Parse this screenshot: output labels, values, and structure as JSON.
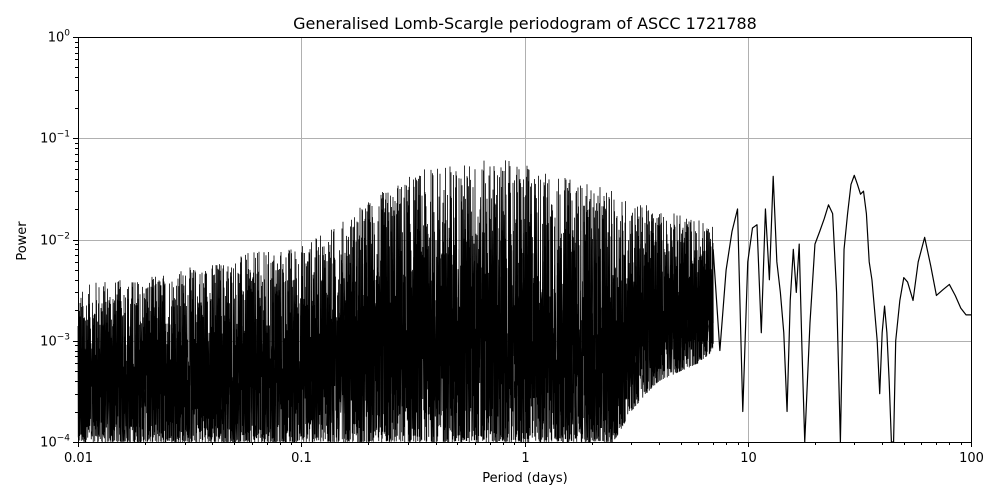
{
  "chart_data": {
    "type": "line",
    "title": "Generalised Lomb-Scargle periodogram of ASCC 1721788",
    "xlabel": "Period (days)",
    "ylabel": "Power",
    "xscale": "log",
    "yscale": "log",
    "xlim": [
      0.01,
      100
    ],
    "ylim": [
      0.0001,
      1
    ],
    "grid": true,
    "line_color": "#000000",
    "x_ticks": [
      {
        "value": 0.01,
        "label": "0.01"
      },
      {
        "value": 0.1,
        "label": "0.1"
      },
      {
        "value": 1,
        "label": "1"
      },
      {
        "value": 10,
        "label": "10"
      },
      {
        "value": 100,
        "label": "100"
      }
    ],
    "y_ticks": [
      {
        "value": 0.0001,
        "base": "10",
        "exp": "−4"
      },
      {
        "value": 0.001,
        "base": "10",
        "exp": "−3"
      },
      {
        "value": 0.01,
        "base": "10",
        "exp": "−2"
      },
      {
        "value": 0.1,
        "base": "10",
        "exp": "−1"
      },
      {
        "value": 1,
        "base": "10",
        "exp": "0"
      }
    ],
    "envelope": {
      "x": [
        0.01,
        0.012,
        0.015,
        0.02,
        0.025,
        0.03,
        0.04,
        0.05,
        0.06,
        0.08,
        0.1,
        0.12,
        0.15,
        0.2,
        0.25,
        0.3,
        0.4,
        0.5,
        0.6,
        0.75,
        0.9,
        1.0,
        1.2,
        1.5,
        2.0,
        2.5,
        3.0,
        3.5,
        4.0,
        5.0,
        6.0,
        7.0
      ],
      "upper": [
        0.003,
        0.004,
        0.004,
        0.0042,
        0.0048,
        0.0052,
        0.006,
        0.0068,
        0.0075,
        0.0082,
        0.009,
        0.011,
        0.015,
        0.025,
        0.033,
        0.042,
        0.055,
        0.058,
        0.06,
        0.062,
        0.06,
        0.055,
        0.05,
        0.042,
        0.035,
        0.03,
        0.025,
        0.022,
        0.02,
        0.018,
        0.016,
        0.015
      ],
      "lower": [
        0.0001,
        0.0001,
        0.0001,
        0.0001,
        0.0001,
        0.0001,
        0.0001,
        0.0001,
        0.0001,
        0.0001,
        0.0001,
        0.0001,
        0.0001,
        0.0001,
        0.0001,
        0.0001,
        0.0001,
        0.0001,
        0.0001,
        0.0001,
        0.0001,
        0.0001,
        0.0001,
        0.0001,
        0.0001,
        0.0001,
        0.0002,
        0.0003,
        0.0004,
        0.0005,
        0.0006,
        0.0008
      ]
    },
    "series": [
      {
        "x": [
          7.0,
          7.5,
          8.0,
          8.5,
          9.0,
          9.5,
          10.0,
          10.5,
          11.0,
          11.5,
          12.0,
          12.5,
          13.0,
          13.5,
          14.0,
          14.5,
          15.0,
          15.5,
          16.0,
          16.5,
          17.0,
          17.5,
          18.0,
          19.0,
          20.0,
          21.0,
          22.0,
          23.0,
          24.0,
          25.0,
          26.0,
          27.0,
          28.0,
          29.0,
          30.0,
          31.0,
          32.0,
          33.0,
          34.0,
          35.0,
          36.0,
          37.0,
          38.0,
          39.0,
          40.0,
          41.0,
          42.0,
          43.0,
          44.0,
          45.0,
          46.0,
          48.0,
          50.0,
          52.0,
          55.0,
          58.0,
          62.0,
          66.0,
          70.0,
          75.0,
          80.0,
          85.0,
          90.0,
          95.0,
          100.0
        ],
        "y": [
          0.008,
          0.0008,
          0.005,
          0.012,
          0.02,
          0.0002,
          0.006,
          0.013,
          0.014,
          0.0012,
          0.02,
          0.004,
          0.042,
          0.006,
          0.003,
          0.0012,
          0.0002,
          0.0025,
          0.008,
          0.003,
          0.009,
          0.0008,
          0.0001,
          0.0015,
          0.009,
          0.012,
          0.016,
          0.022,
          0.018,
          0.003,
          0.0001,
          0.008,
          0.018,
          0.035,
          0.043,
          0.035,
          0.028,
          0.03,
          0.018,
          0.006,
          0.004,
          0.002,
          0.001,
          0.0003,
          0.0012,
          0.0022,
          0.0012,
          0.0004,
          0.0001,
          0.0001,
          0.001,
          0.0025,
          0.0042,
          0.0038,
          0.0025,
          0.006,
          0.0105,
          0.0055,
          0.0028,
          0.0032,
          0.0036,
          0.0028,
          0.0021,
          0.0018,
          0.0018
        ]
      }
    ]
  }
}
